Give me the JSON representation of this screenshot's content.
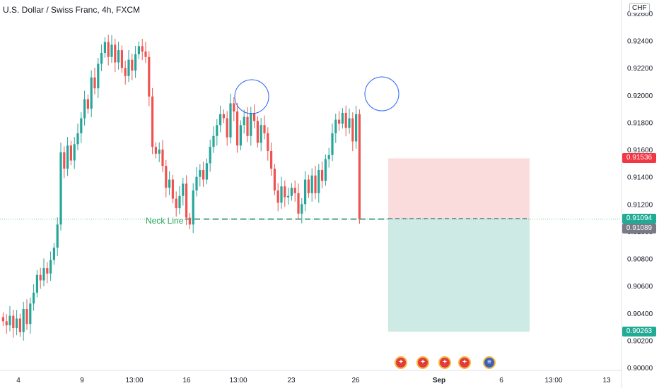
{
  "header": {
    "title": "U.S. Dollar / Swiss Franc, 4h, FXCM",
    "currency": "CHF"
  },
  "annotations": {
    "neck_line_label": "Neck Line"
  },
  "price_tags": [
    {
      "label": "0.91536",
      "value": 0.91536,
      "color": "#f23645"
    },
    {
      "label": "0.91094",
      "value": 0.91094,
      "color": "#22ab94"
    },
    {
      "label": "0.91089",
      "value": 0.91089,
      "color": "#787b86"
    },
    {
      "label": "0.90263",
      "value": 0.90263,
      "color": "#22ab94"
    }
  ],
  "event_icons": [
    {
      "name": "swiss-flag-icon",
      "glyph": "+"
    },
    {
      "name": "swiss-flag-icon",
      "glyph": "+"
    },
    {
      "name": "swiss-flag-icon",
      "glyph": "+"
    },
    {
      "name": "swiss-flag-icon",
      "glyph": "+"
    },
    {
      "name": "us-flag-icon",
      "glyph": "≡"
    }
  ],
  "colors": {
    "up": "#26a69a",
    "down": "#ef5350",
    "neck": "#26a65b",
    "stop_zone": "#fbdcdc",
    "target_zone": "#cdeae5",
    "circle": "#2962ff"
  },
  "chart_data": {
    "type": "candlestick",
    "title": "U.S. Dollar / Swiss Franc, 4h, FXCM",
    "ylim": [
      0.9,
      0.926
    ],
    "y_ticks": [
      "0.92600",
      "0.92400",
      "0.92200",
      "0.92000",
      "0.91800",
      "0.91600",
      "0.91400",
      "0.91200",
      "0.91000",
      "0.90800",
      "0.90600",
      "0.90400",
      "0.90200",
      "0.90000"
    ],
    "x_ticks": [
      "4",
      "9",
      "13:00",
      "16",
      "13:00",
      "23",
      "26",
      "Sep",
      "6",
      "13:00",
      "13"
    ],
    "neck_line": 0.9109,
    "position": {
      "type": "short",
      "entry": 0.91094,
      "stop": 0.91536,
      "target": 0.90263
    },
    "pattern": "triple top",
    "series": [
      {
        "closes": [
          0.9034,
          0.9031,
          0.9038,
          0.9029,
          0.9036,
          0.9026,
          0.9043,
          0.9032,
          0.9047,
          0.9055,
          0.9068,
          0.9064,
          0.9073,
          0.9069,
          0.9079,
          0.9088,
          0.9105,
          0.9158,
          0.9146,
          0.9163,
          0.9152,
          0.9164,
          0.9172,
          0.9183,
          0.9197,
          0.919,
          0.9213,
          0.9205,
          0.9223,
          0.9231,
          0.9239,
          0.9228,
          0.9237,
          0.9224,
          0.9233,
          0.922,
          0.9214,
          0.9226,
          0.9218,
          0.923,
          0.9236,
          0.9232,
          0.9228,
          0.9199,
          0.9162,
          0.9157,
          0.916,
          0.9148,
          0.9132,
          0.9138,
          0.9124,
          0.9117,
          0.9126,
          0.9135,
          0.911,
          0.9105,
          0.913,
          0.914,
          0.9145,
          0.9138,
          0.915,
          0.9162,
          0.917,
          0.9178,
          0.9186,
          0.9183,
          0.9169,
          0.9194,
          0.9188,
          0.9163,
          0.9178,
          0.9184,
          0.917,
          0.9187,
          0.9181,
          0.9165,
          0.9178,
          0.9172,
          0.9159,
          0.9146,
          0.913,
          0.9121,
          0.9133,
          0.9125,
          0.9126,
          0.9132,
          0.9128,
          0.9113,
          0.912,
          0.9138,
          0.9128,
          0.9141,
          0.9128,
          0.9145,
          0.9137,
          0.9153,
          0.9156,
          0.9172,
          0.9182,
          0.9179,
          0.9187,
          0.9176,
          0.9183,
          0.9166,
          0.9186,
          0.9109
        ]
      }
    ]
  }
}
